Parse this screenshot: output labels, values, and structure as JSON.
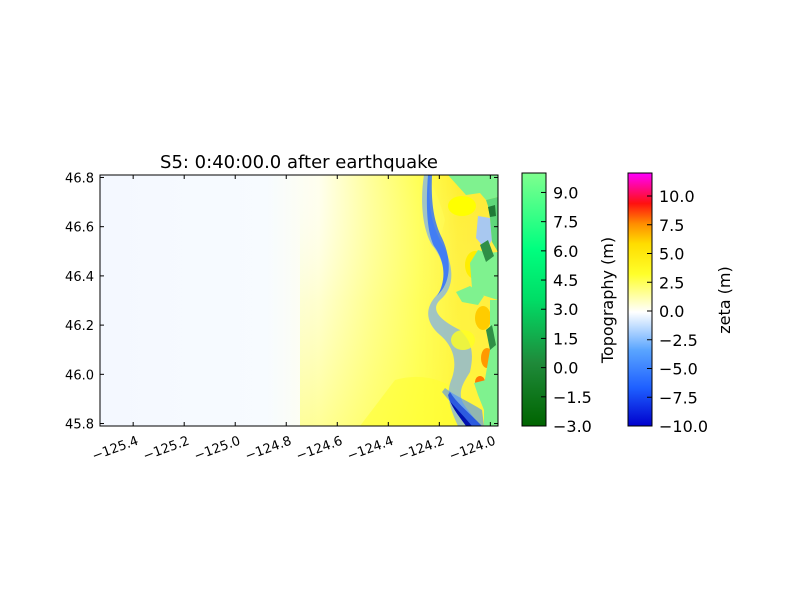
{
  "chart_data": [
    {
      "type": "heatmap",
      "title": "S5: 0:40:00.0 after earthquake",
      "xlabel": "",
      "ylabel": "",
      "xlim": [
        -125.53,
        -123.97
      ],
      "ylim": [
        45.79,
        46.81
      ],
      "x_ticks": [
        -125.4,
        -125.2,
        -125.0,
        -124.8,
        -124.6,
        -124.4,
        -124.2,
        -124.0
      ],
      "x_tick_labels": [
        "−125.4",
        "−125.2",
        "−125.0",
        "−124.8",
        "−124.6",
        "−124.4",
        "−124.2",
        "−124.0"
      ],
      "y_ticks": [
        45.8,
        46.0,
        46.2,
        46.4,
        46.6,
        46.8
      ],
      "y_tick_labels": [
        "45.8",
        "46.0",
        "46.2",
        "46.4",
        "46.6",
        "46.8"
      ],
      "grid": false,
      "description_fields": {
        "ocean_field": "zeta (m)",
        "land_field": "Topography (m)"
      }
    },
    {
      "type": "colorbar",
      "label": "Topography (m)",
      "vmin": -3.0,
      "vmax": 10.0,
      "ticks": [
        -3.0,
        -1.5,
        0.0,
        1.5,
        3.0,
        4.5,
        6.0,
        7.5,
        9.0
      ],
      "tick_labels": [
        "−3.0",
        "−1.5",
        "0.0",
        "1.5",
        "3.0",
        "4.5",
        "6.0",
        "7.5",
        "9.0"
      ],
      "colors": [
        "#006400",
        "#00ff7f",
        "#7fff8f"
      ]
    },
    {
      "type": "colorbar",
      "label": "zeta (m)",
      "vmin": -10.0,
      "vmax": 12.0,
      "ticks": [
        -10.0,
        -7.5,
        -5.0,
        -2.5,
        0.0,
        2.5,
        5.0,
        7.5,
        10.0
      ],
      "tick_labels": [
        "−10.0",
        "−7.5",
        "−5.0",
        "−2.5",
        "0.0",
        "2.5",
        "5.0",
        "7.5",
        "10.0"
      ],
      "colors": [
        "#0000cd",
        "#1e90ff",
        "#87cefa",
        "#ffffff",
        "#ffff00",
        "#ff8c00",
        "#ff0000",
        "#ff00ff"
      ]
    }
  ]
}
